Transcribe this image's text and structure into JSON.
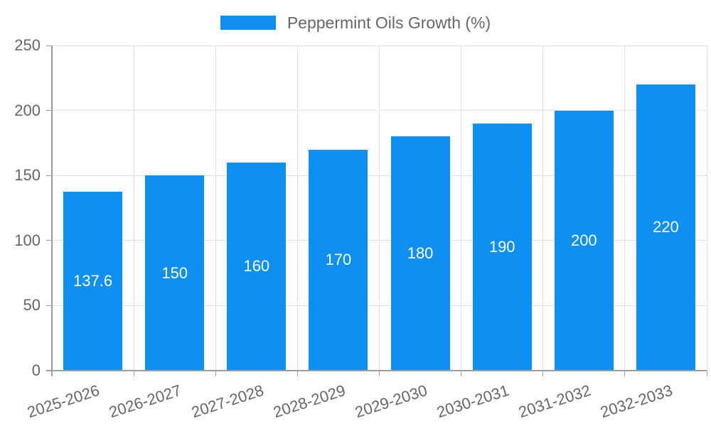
{
  "chart_data": {
    "type": "bar",
    "title": "",
    "xlabel": "",
    "ylabel": "",
    "legend_position": "top",
    "grid": true,
    "categories": [
      "2025-2026",
      "2026-2027",
      "2027-2028",
      "2028-2029",
      "2029-2030",
      "2030-2031",
      "2031-2032",
      "2032-2033"
    ],
    "series": [
      {
        "name": "Peppermint Oils Growth (%)",
        "values": [
          137.6,
          150,
          160,
          170,
          180,
          190,
          200,
          220
        ]
      }
    ],
    "value_labels": [
      "137.6",
      "150",
      "160",
      "170",
      "180",
      "190",
      "200",
      "220"
    ],
    "ylim": [
      0,
      250
    ],
    "yticks": [
      0,
      50,
      100,
      150,
      200,
      250
    ],
    "colors": {
      "bar": "#0d90f2",
      "axis_text": "#666666",
      "value_label": "#ffffff",
      "grid_line": "#e0e0e0",
      "axis_line": "#9e9e9e",
      "background": "#ffffff"
    }
  }
}
